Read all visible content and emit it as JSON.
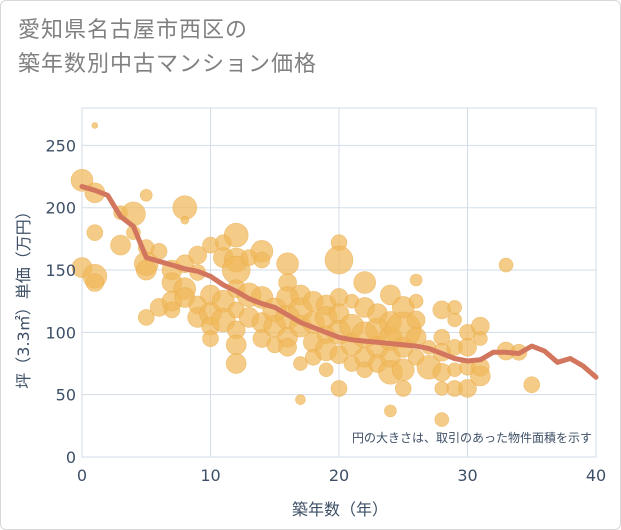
{
  "chart_data": {
    "type": "scatter",
    "title_lines": [
      "愛知県名古屋市西区の",
      "築年数別中古マンション価格"
    ],
    "xlabel": "築年数（年）",
    "ylabel": "坪（3.3㎡）単価（万円）",
    "annotation": "円の大きさは、取引のあった物件面積を示す",
    "xlim": [
      0,
      40
    ],
    "ylim": [
      0,
      280
    ],
    "xticks": [
      0,
      10,
      20,
      30,
      40
    ],
    "yticks": [
      0,
      50,
      100,
      150,
      200,
      250
    ],
    "grid": true,
    "colors": {
      "bubble": "#f0b95a",
      "bubble_edge": "#e8a844",
      "line": "#d3765e",
      "grid": "#d3dde8"
    },
    "scatter": [
      {
        "x": 1,
        "y": 266,
        "s": 3
      },
      {
        "x": 0,
        "y": 222,
        "s": 11
      },
      {
        "x": 1,
        "y": 212,
        "s": 10
      },
      {
        "x": 3,
        "y": 196,
        "s": 7
      },
      {
        "x": 4,
        "y": 195,
        "s": 12
      },
      {
        "x": 5,
        "y": 210,
        "s": 6
      },
      {
        "x": 1,
        "y": 180,
        "s": 8
      },
      {
        "x": 4,
        "y": 180,
        "s": 7
      },
      {
        "x": 3,
        "y": 170,
        "s": 10
      },
      {
        "x": 5,
        "y": 168,
        "s": 8
      },
      {
        "x": 6,
        "y": 165,
        "s": 8
      },
      {
        "x": 8,
        "y": 200,
        "s": 12
      },
      {
        "x": 8,
        "y": 190,
        "s": 4
      },
      {
        "x": 0,
        "y": 152,
        "s": 10
      },
      {
        "x": 1,
        "y": 145,
        "s": 12
      },
      {
        "x": 1,
        "y": 140,
        "s": 9
      },
      {
        "x": 5,
        "y": 155,
        "s": 12
      },
      {
        "x": 5,
        "y": 150,
        "s": 10
      },
      {
        "x": 7,
        "y": 150,
        "s": 10
      },
      {
        "x": 8,
        "y": 155,
        "s": 9
      },
      {
        "x": 7,
        "y": 140,
        "s": 10
      },
      {
        "x": 8,
        "y": 135,
        "s": 11
      },
      {
        "x": 9,
        "y": 148,
        "s": 8
      },
      {
        "x": 9,
        "y": 162,
        "s": 9
      },
      {
        "x": 10,
        "y": 170,
        "s": 8
      },
      {
        "x": 11,
        "y": 172,
        "s": 8
      },
      {
        "x": 11,
        "y": 160,
        "s": 10
      },
      {
        "x": 12,
        "y": 178,
        "s": 12
      },
      {
        "x": 12,
        "y": 158,
        "s": 12
      },
      {
        "x": 12,
        "y": 150,
        "s": 14
      },
      {
        "x": 13,
        "y": 160,
        "s": 8
      },
      {
        "x": 14,
        "y": 165,
        "s": 11
      },
      {
        "x": 14,
        "y": 158,
        "s": 8
      },
      {
        "x": 16,
        "y": 155,
        "s": 11
      },
      {
        "x": 16,
        "y": 140,
        "s": 9
      },
      {
        "x": 6,
        "y": 120,
        "s": 9
      },
      {
        "x": 7,
        "y": 125,
        "s": 10
      },
      {
        "x": 7,
        "y": 118,
        "s": 8
      },
      {
        "x": 5,
        "y": 112,
        "s": 8
      },
      {
        "x": 8,
        "y": 128,
        "s": 10
      },
      {
        "x": 9,
        "y": 122,
        "s": 9
      },
      {
        "x": 9,
        "y": 112,
        "s": 10
      },
      {
        "x": 10,
        "y": 130,
        "s": 10
      },
      {
        "x": 10,
        "y": 115,
        "s": 11
      },
      {
        "x": 10,
        "y": 105,
        "s": 9
      },
      {
        "x": 10,
        "y": 95,
        "s": 8
      },
      {
        "x": 11,
        "y": 110,
        "s": 12
      },
      {
        "x": 11,
        "y": 125,
        "s": 11
      },
      {
        "x": 12,
        "y": 135,
        "s": 9
      },
      {
        "x": 12,
        "y": 118,
        "s": 8
      },
      {
        "x": 12,
        "y": 102,
        "s": 9
      },
      {
        "x": 12,
        "y": 90,
        "s": 10
      },
      {
        "x": 12,
        "y": 75,
        "s": 10
      },
      {
        "x": 13,
        "y": 130,
        "s": 12
      },
      {
        "x": 13,
        "y": 112,
        "s": 10
      },
      {
        "x": 14,
        "y": 128,
        "s": 11
      },
      {
        "x": 14,
        "y": 108,
        "s": 10
      },
      {
        "x": 14,
        "y": 95,
        "s": 9
      },
      {
        "x": 15,
        "y": 118,
        "s": 12
      },
      {
        "x": 15,
        "y": 105,
        "s": 11
      },
      {
        "x": 15,
        "y": 90,
        "s": 8
      },
      {
        "x": 16,
        "y": 128,
        "s": 11
      },
      {
        "x": 16,
        "y": 112,
        "s": 12
      },
      {
        "x": 16,
        "y": 96,
        "s": 10
      },
      {
        "x": 16,
        "y": 88,
        "s": 9
      },
      {
        "x": 17,
        "y": 130,
        "s": 10
      },
      {
        "x": 17,
        "y": 118,
        "s": 12
      },
      {
        "x": 17,
        "y": 105,
        "s": 11
      },
      {
        "x": 17,
        "y": 75,
        "s": 7
      },
      {
        "x": 17,
        "y": 46,
        "s": 5
      },
      {
        "x": 18,
        "y": 125,
        "s": 10
      },
      {
        "x": 18,
        "y": 108,
        "s": 11
      },
      {
        "x": 18,
        "y": 92,
        "s": 10
      },
      {
        "x": 18,
        "y": 80,
        "s": 8
      },
      {
        "x": 19,
        "y": 122,
        "s": 10
      },
      {
        "x": 19,
        "y": 112,
        "s": 11
      },
      {
        "x": 19,
        "y": 98,
        "s": 9
      },
      {
        "x": 19,
        "y": 86,
        "s": 11
      },
      {
        "x": 19,
        "y": 70,
        "s": 7
      },
      {
        "x": 20,
        "y": 172,
        "s": 8
      },
      {
        "x": 20,
        "y": 158,
        "s": 14
      },
      {
        "x": 20,
        "y": 128,
        "s": 9
      },
      {
        "x": 20,
        "y": 115,
        "s": 10
      },
      {
        "x": 20,
        "y": 100,
        "s": 12
      },
      {
        "x": 20,
        "y": 82,
        "s": 9
      },
      {
        "x": 20,
        "y": 55,
        "s": 8
      },
      {
        "x": 21,
        "y": 125,
        "s": 7
      },
      {
        "x": 21,
        "y": 105,
        "s": 12
      },
      {
        "x": 21,
        "y": 90,
        "s": 11
      },
      {
        "x": 21,
        "y": 75,
        "s": 8
      },
      {
        "x": 22,
        "y": 140,
        "s": 11
      },
      {
        "x": 22,
        "y": 120,
        "s": 10
      },
      {
        "x": 22,
        "y": 98,
        "s": 13
      },
      {
        "x": 22,
        "y": 80,
        "s": 10
      },
      {
        "x": 22,
        "y": 70,
        "s": 8
      },
      {
        "x": 23,
        "y": 115,
        "s": 10
      },
      {
        "x": 23,
        "y": 102,
        "s": 12
      },
      {
        "x": 23,
        "y": 88,
        "s": 11
      },
      {
        "x": 23,
        "y": 75,
        "s": 9
      },
      {
        "x": 24,
        "y": 130,
        "s": 10
      },
      {
        "x": 24,
        "y": 108,
        "s": 11
      },
      {
        "x": 24,
        "y": 95,
        "s": 12
      },
      {
        "x": 24,
        "y": 80,
        "s": 10
      },
      {
        "x": 24,
        "y": 68,
        "s": 12
      },
      {
        "x": 24,
        "y": 37,
        "s": 6
      },
      {
        "x": 25,
        "y": 120,
        "s": 11
      },
      {
        "x": 25,
        "y": 102,
        "s": 18
      },
      {
        "x": 25,
        "y": 88,
        "s": 10
      },
      {
        "x": 25,
        "y": 70,
        "s": 11
      },
      {
        "x": 25,
        "y": 55,
        "s": 8
      },
      {
        "x": 26,
        "y": 142,
        "s": 6
      },
      {
        "x": 26,
        "y": 125,
        "s": 7
      },
      {
        "x": 26,
        "y": 110,
        "s": 9
      },
      {
        "x": 26,
        "y": 96,
        "s": 10
      },
      {
        "x": 26,
        "y": 80,
        "s": 8
      },
      {
        "x": 27,
        "y": 88,
        "s": 7
      },
      {
        "x": 27,
        "y": 72,
        "s": 12
      },
      {
        "x": 28,
        "y": 118,
        "s": 9
      },
      {
        "x": 28,
        "y": 96,
        "s": 8
      },
      {
        "x": 28,
        "y": 84,
        "s": 9
      },
      {
        "x": 28,
        "y": 68,
        "s": 9
      },
      {
        "x": 28,
        "y": 55,
        "s": 7
      },
      {
        "x": 28,
        "y": 30,
        "s": 7
      },
      {
        "x": 29,
        "y": 120,
        "s": 7
      },
      {
        "x": 29,
        "y": 110,
        "s": 7
      },
      {
        "x": 29,
        "y": 88,
        "s": 8
      },
      {
        "x": 29,
        "y": 70,
        "s": 7
      },
      {
        "x": 29,
        "y": 55,
        "s": 8
      },
      {
        "x": 30,
        "y": 100,
        "s": 8
      },
      {
        "x": 30,
        "y": 88,
        "s": 9
      },
      {
        "x": 30,
        "y": 72,
        "s": 8
      },
      {
        "x": 30,
        "y": 55,
        "s": 9
      },
      {
        "x": 31,
        "y": 105,
        "s": 9
      },
      {
        "x": 31,
        "y": 95,
        "s": 7
      },
      {
        "x": 31,
        "y": 72,
        "s": 9
      },
      {
        "x": 31,
        "y": 65,
        "s": 10
      },
      {
        "x": 33,
        "y": 154,
        "s": 7
      },
      {
        "x": 33,
        "y": 85,
        "s": 9
      },
      {
        "x": 34,
        "y": 84,
        "s": 8
      },
      {
        "x": 35,
        "y": 58,
        "s": 8
      }
    ],
    "line": {
      "x": [
        0,
        1,
        2,
        3,
        4,
        5,
        6,
        7,
        8,
        9,
        10,
        11,
        12,
        13,
        14,
        15,
        16,
        17,
        18,
        19,
        20,
        21,
        22,
        23,
        24,
        25,
        26,
        27,
        28,
        29,
        30,
        31,
        32,
        33,
        34,
        35,
        36,
        37,
        38,
        39,
        40
      ],
      "y": [
        217,
        214,
        210,
        193,
        185,
        160,
        157,
        154,
        151,
        149,
        145,
        138,
        133,
        127,
        123,
        120,
        114,
        108,
        104,
        100,
        96,
        94,
        93,
        92,
        91,
        90,
        89,
        87,
        83,
        79,
        77,
        78,
        84,
        84,
        83,
        89,
        85,
        76,
        79,
        73,
        64
      ]
    }
  }
}
